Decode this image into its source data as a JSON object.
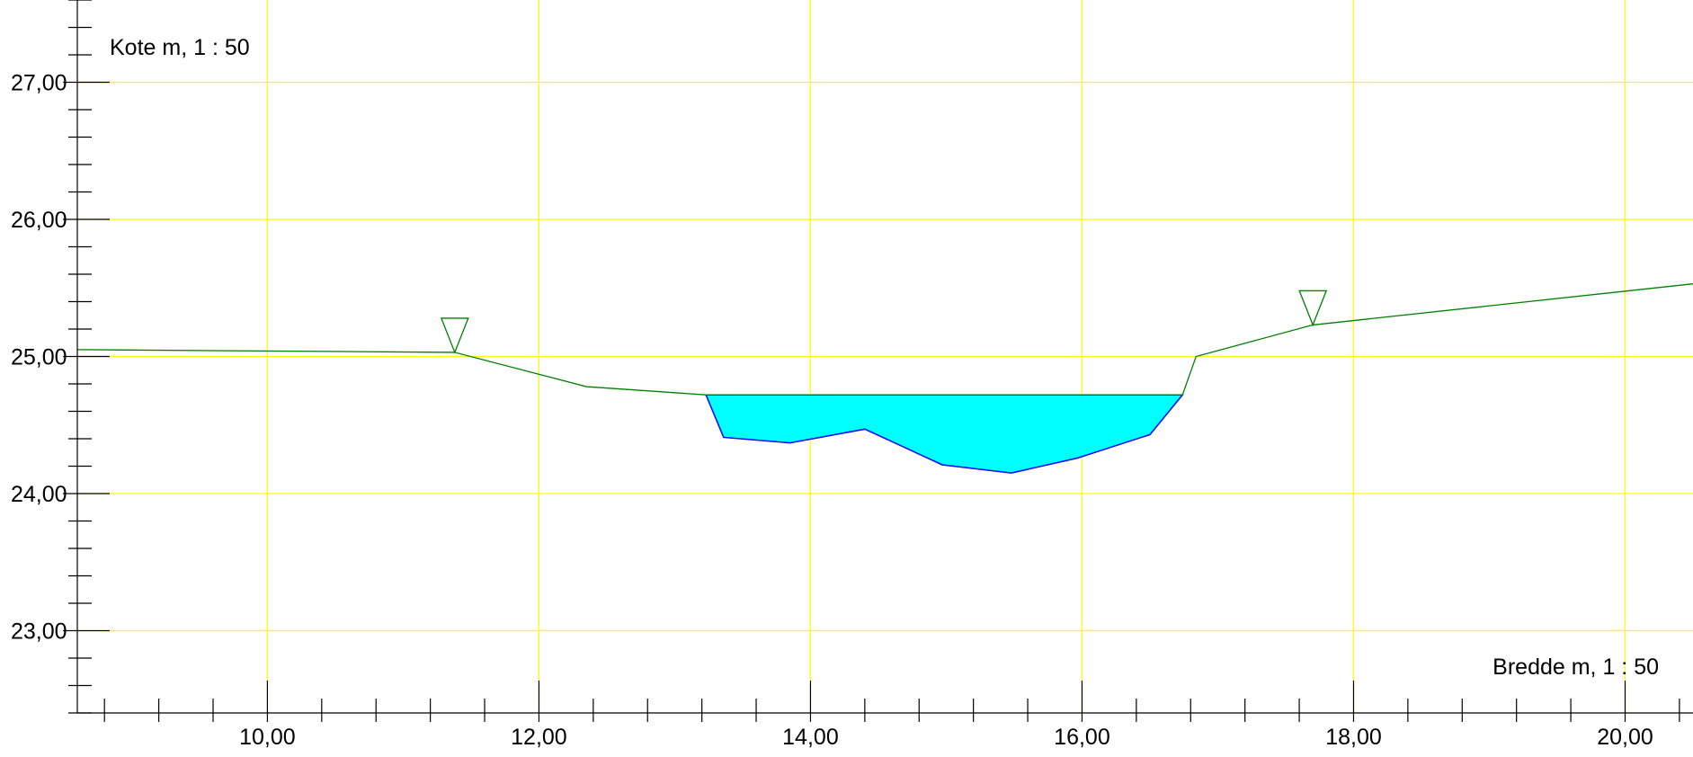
{
  "chart_data": {
    "type": "line",
    "ylabel": "Kote m, 1 : 50",
    "xlabel": "Bredde m, 1 : 50",
    "xlim": [
      8.6,
      20.5
    ],
    "ylim": [
      22.4,
      27.6
    ],
    "x_ticks": [
      "10,00",
      "12,00",
      "14,00",
      "16,00",
      "18,00",
      "20,00"
    ],
    "y_ticks": [
      "23,00",
      "24,00",
      "25,00",
      "26,00",
      "27,00"
    ],
    "grid": true,
    "colors": {
      "grid": "#ffff00",
      "terrain": "#008000",
      "water_fill": "#00ffff",
      "water_edge": "#0000ff",
      "axis": "#000000"
    },
    "series": [
      {
        "kind": "terrain-profile",
        "x": [
          8.6,
          11.38,
          12.35,
          13.23,
          16.74,
          16.84,
          17.7,
          20.5
        ],
        "y": [
          25.05,
          25.03,
          24.78,
          24.72,
          24.72,
          25.0,
          25.23,
          25.53
        ]
      },
      {
        "kind": "water-surface",
        "water_level": 24.72,
        "bed_x": [
          13.23,
          13.36,
          13.85,
          14.4,
          14.97,
          15.48,
          15.97,
          16.5,
          16.74
        ],
        "bed_y": [
          24.72,
          24.41,
          24.37,
          24.47,
          24.21,
          24.15,
          24.26,
          24.43,
          24.72
        ]
      }
    ],
    "annotations": [
      {
        "kind": "bank-marker-triangle",
        "x": 11.38,
        "y": 25.03
      },
      {
        "kind": "bank-marker-triangle",
        "x": 17.7,
        "y": 25.23
      }
    ]
  }
}
